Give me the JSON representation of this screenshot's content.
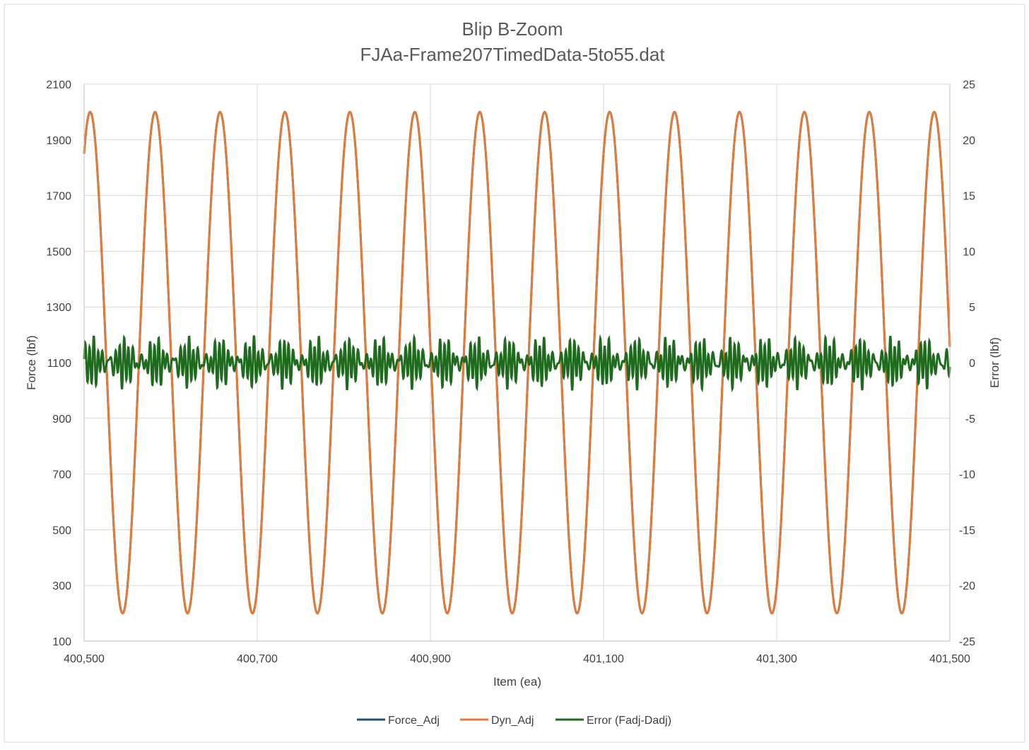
{
  "chart_data": {
    "type": "line",
    "title": "Blip B-Zoom",
    "subtitle": "FJAa-Frame207TimedData-5to55.dat",
    "xlabel": "Item (ea)",
    "ylabel": "Force (lbf)",
    "y2label": "Error (lbf)",
    "xlim": [
      400500,
      401500
    ],
    "ylim": [
      100,
      2100
    ],
    "y2lim": [
      -25,
      25
    ],
    "x_ticks": [
      400500,
      400700,
      400900,
      401100,
      401300,
      401500
    ],
    "x_tick_labels": [
      "400,500",
      "400,700",
      "400,900",
      "401,100",
      "401,300",
      "401,500"
    ],
    "y_ticks": [
      100,
      300,
      500,
      700,
      900,
      1100,
      1300,
      1500,
      1700,
      1900,
      2100
    ],
    "y_tick_labels": [
      "100",
      "300",
      "500",
      "700",
      "900",
      "1100",
      "1300",
      "1500",
      "1700",
      "1900",
      "2100"
    ],
    "y2_ticks": [
      -25,
      -20,
      -15,
      -10,
      -5,
      0,
      5,
      10,
      15,
      20,
      25
    ],
    "y2_tick_labels": [
      "-25",
      "-20",
      "-15",
      "-10",
      "-5",
      "0",
      "5",
      "10",
      "15",
      "20",
      "25"
    ],
    "grid": "vertical and horizontal major gridlines",
    "legend_position": "bottom",
    "series": [
      {
        "name": "Force_Adj",
        "axis": "left",
        "color": "#1f4e79",
        "model": "sinusoid",
        "mean": 1100,
        "amplitude": 900,
        "period_items": 75,
        "peak_at_items": [
          400507,
          400582,
          400657,
          400732,
          400807,
          400882,
          400957,
          401032,
          401107,
          401182,
          401257,
          401332,
          401407,
          401482
        ]
      },
      {
        "name": "Dyn_Adj",
        "axis": "left",
        "color": "#e07b39",
        "model": "sinusoid",
        "mean": 1100,
        "amplitude": 900,
        "period_items": 75,
        "peak_at_items": [
          400507,
          400582,
          400657,
          400732,
          400807,
          400882,
          400957,
          401032,
          401107,
          401182,
          401257,
          401332,
          401407,
          401482
        ]
      },
      {
        "name": "Error (Fadj-Dadj)",
        "axis": "right",
        "color": "#1e6b1e",
        "model": "oscillation",
        "mean": 0,
        "typical_amplitude": 2,
        "min_approx": -3,
        "max_approx": 4,
        "cycles_per_item": 0.2
      }
    ]
  }
}
